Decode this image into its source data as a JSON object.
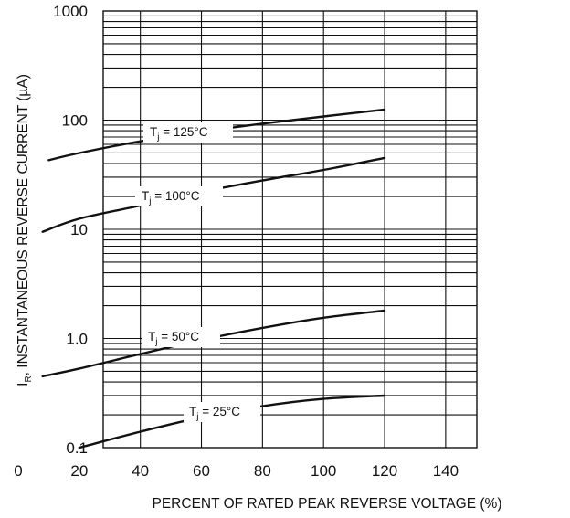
{
  "chart_data": {
    "type": "line",
    "title": "",
    "xlabel": "PERCENT OF RATED PEAK REVERSE VOLTAGE (%)",
    "ylabel": {
      "symbol": "I",
      "subscript": "R",
      "text": ", INSTANTANEOUS REVERSE CURRENT (µA)"
    },
    "xlim": [
      0,
      120
    ],
    "ylim": [
      0.1,
      1000
    ],
    "yscale": "log",
    "grid": true,
    "legend": "none",
    "x_ticks": [
      "0",
      "20",
      "40",
      "60",
      "80",
      "100",
      "120",
      "140"
    ],
    "y_ticks": [
      "0.1",
      "1.0",
      "10",
      "100",
      "1000"
    ],
    "series": [
      {
        "label": {
          "symbol": "T",
          "subscript": "j",
          "text": " = 125°C"
        },
        "x": [
          10,
          20,
          40,
          60,
          80,
          100,
          120
        ],
        "y": [
          43,
          50,
          64,
          78,
          93,
          108,
          125
        ]
      },
      {
        "label": {
          "symbol": "T",
          "subscript": "j",
          "text": " = 100°C"
        },
        "x": [
          8,
          20,
          40,
          60,
          80,
          100,
          120
        ],
        "y": [
          9.5,
          12.5,
          16.5,
          22,
          28,
          35,
          45
        ]
      },
      {
        "label": {
          "symbol": "T",
          "subscript": "j",
          "text": " = 50°C"
        },
        "x": [
          8,
          20,
          40,
          60,
          80,
          100,
          120
        ],
        "y": [
          0.45,
          0.53,
          0.72,
          0.97,
          1.25,
          1.55,
          1.8
        ]
      },
      {
        "label": {
          "symbol": "T",
          "subscript": "j",
          "text": " = 25°C"
        },
        "x": [
          20,
          40,
          60,
          80,
          100,
          120
        ],
        "y": [
          0.1,
          0.14,
          0.19,
          0.24,
          0.28,
          0.3
        ]
      }
    ]
  }
}
